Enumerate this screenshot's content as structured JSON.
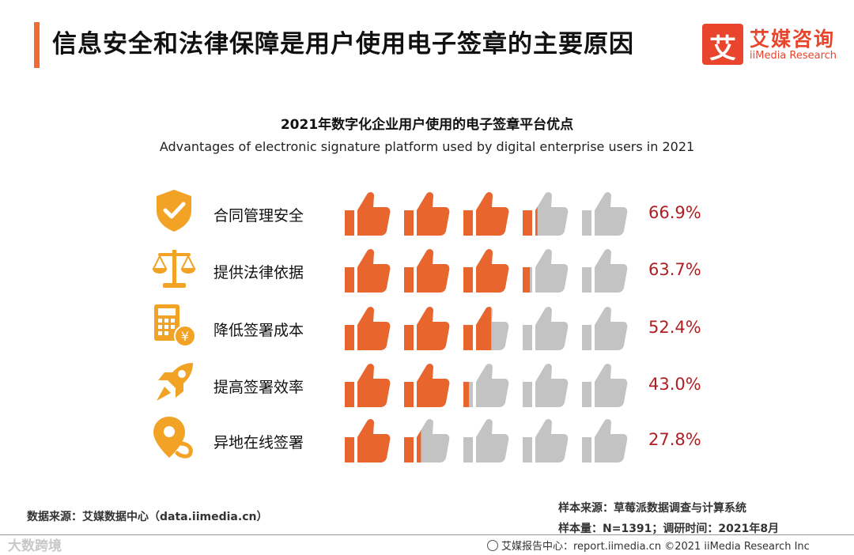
{
  "header": {
    "title": "信息安全和法律保障是用户使用电子签章的主要原因",
    "logo_mark": "艾",
    "logo_cn": "艾媒咨询",
    "logo_en": "iiMedia Research"
  },
  "chart_data": {
    "type": "bar",
    "title": "2021年数字化企业用户使用的电子签章平台优点",
    "subtitle": "Advantages of electronic signature platform used by digital enterprise users in 2021",
    "categories": [
      "合同管理安全",
      "提供法律依据",
      "降低签署成本",
      "提高签署效率",
      "异地在线签署"
    ],
    "values": [
      66.9,
      63.7,
      52.4,
      43.0,
      27.8
    ],
    "value_labels": [
      "66.9%",
      "63.7%",
      "52.4%",
      "43.0%",
      "27.8%"
    ],
    "unit": "%",
    "xlim": [
      0,
      100
    ],
    "icons_per_row": 5,
    "icon_names": [
      "shield-check-icon",
      "scale-icon",
      "calculator-yuan-icon",
      "rocket-icon",
      "location-pin-icon"
    ],
    "fill_color": "#e8652d",
    "empty_color": "#c3c3c3",
    "category_icon_color": "#f2a325",
    "value_color": "#b01e23"
  },
  "source": {
    "data_source": "数据来源：艾媒数据中心（data.iimedia.cn）",
    "sample_source": "样本来源：草莓派数据调查与计算系统",
    "sample_size": "样本量：N=1391；调研时间：2021年8月"
  },
  "footer": {
    "watermark": "大数跨境",
    "report": "艾媒报告中心：report.iimedia.cn  ©2021  iiMedia Research  Inc"
  }
}
